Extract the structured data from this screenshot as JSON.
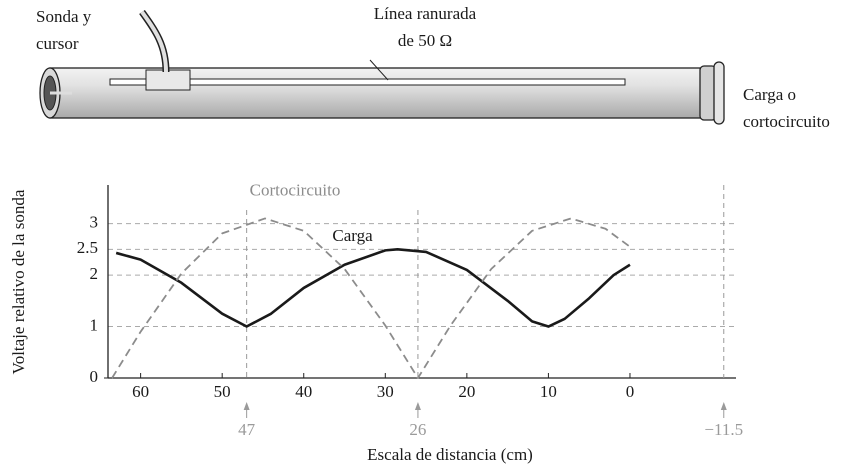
{
  "diagram": {
    "probe_label": [
      "Sonda y",
      "cursor"
    ],
    "line_label": [
      "Línea ranurada",
      "de 50 Ω"
    ],
    "load_label": [
      "Carga o",
      "cortocircuito"
    ]
  },
  "chart_data": {
    "type": "line",
    "x_label": "Escala de distancia (cm)",
    "y_label": "Voltaje relativo de la sonda",
    "xlim": [
      64,
      -13
    ],
    "ylim": [
      0,
      3.75
    ],
    "xticks": [
      60,
      50,
      40,
      30,
      20,
      10,
      0
    ],
    "yticks": [
      0,
      1,
      2,
      2.5,
      3
    ],
    "grid": true,
    "markers": [
      47,
      26,
      {
        "value": -11.5,
        "label": "−11.5"
      }
    ],
    "marker_color": "#9a9a9a",
    "series": [
      {
        "name": "Carga",
        "color": "#1a1a1a",
        "dashed": false,
        "x": [
          63,
          60,
          55,
          50,
          47,
          44,
          40,
          35,
          30,
          28.5,
          25,
          20,
          15,
          12,
          10,
          8,
          5,
          2,
          0
        ],
        "values": [
          2.43,
          2.3,
          1.85,
          1.25,
          1.0,
          1.25,
          1.75,
          2.2,
          2.48,
          2.5,
          2.45,
          2.1,
          1.5,
          1.1,
          1.0,
          1.15,
          1.55,
          2.0,
          2.2
        ]
      },
      {
        "name": "Cortocircuito",
        "color": "#8c8c8c",
        "dashed": true,
        "x": [
          63.5,
          60,
          55,
          50,
          44.75,
          40,
          35,
          30,
          26,
          22,
          17,
          12,
          7.25,
          3,
          0
        ],
        "values": [
          0,
          0.9,
          2.03,
          2.81,
          3.1,
          2.86,
          2.12,
          1.02,
          0,
          1.02,
          2.12,
          2.86,
          3.1,
          2.9,
          2.55
        ]
      }
    ]
  }
}
